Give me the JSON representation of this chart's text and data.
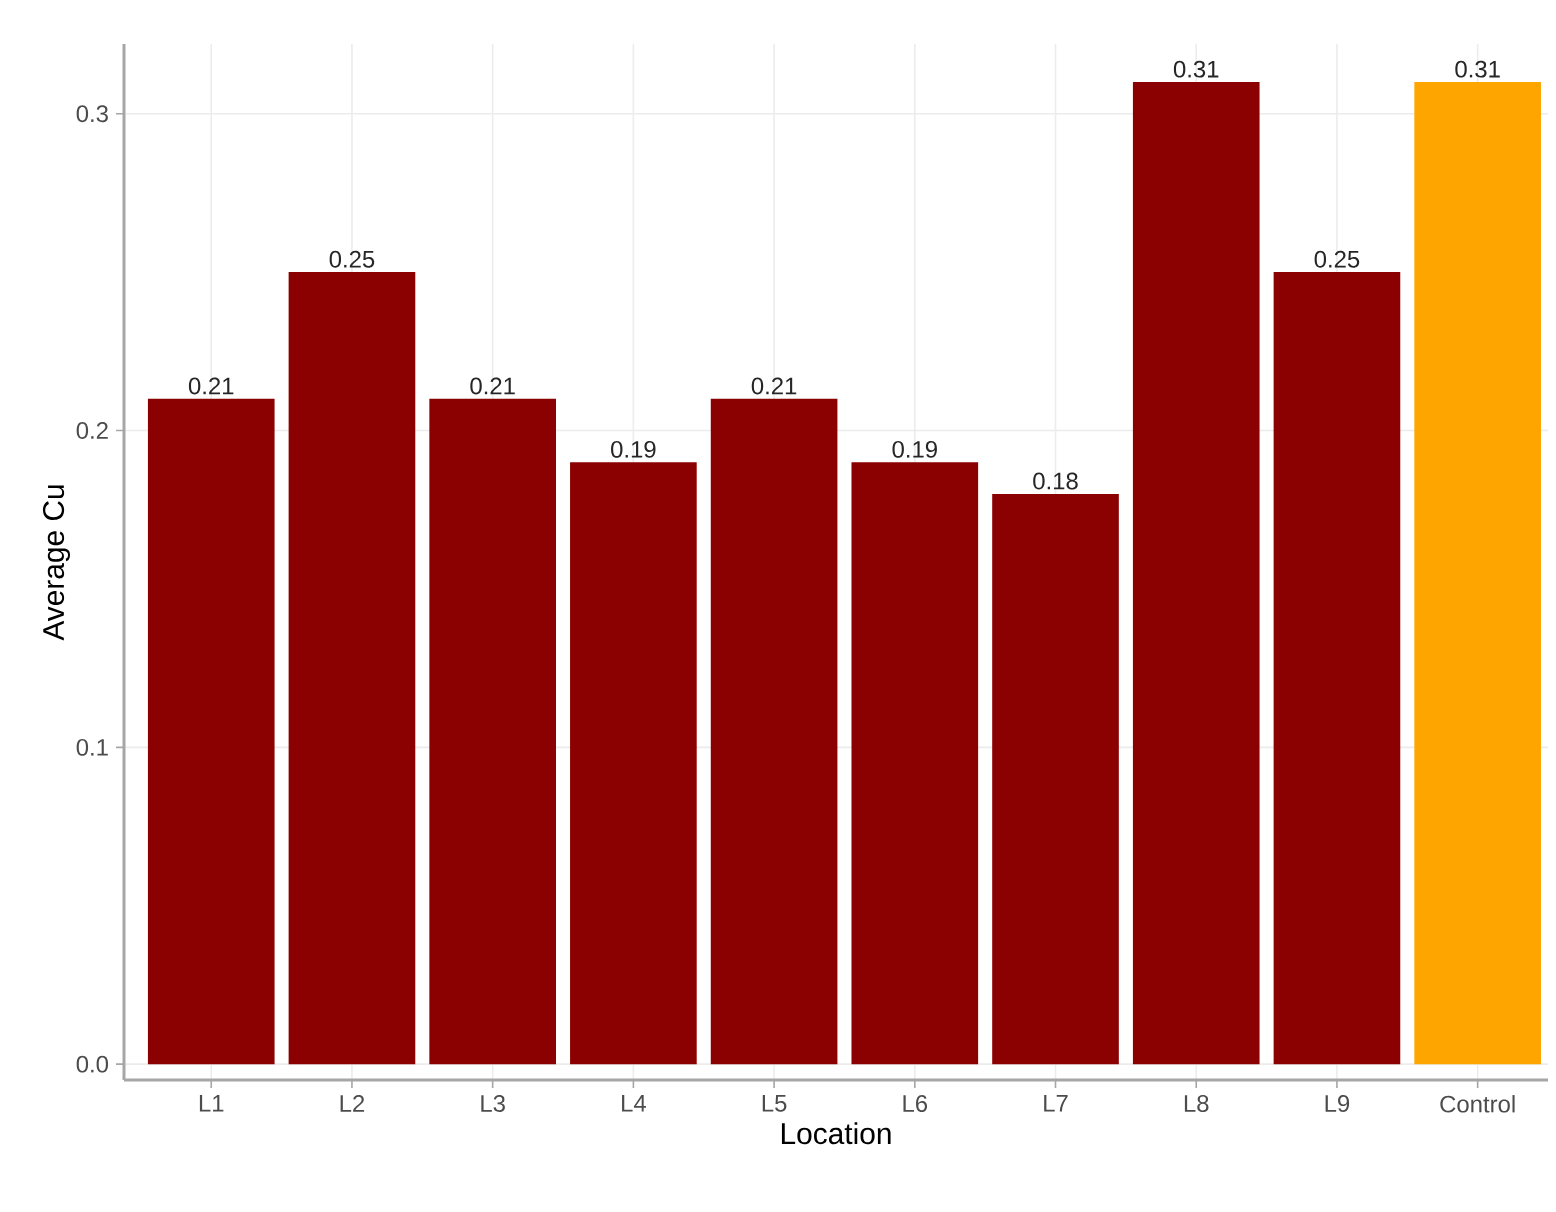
{
  "chart_data": {
    "type": "bar",
    "xlabel": "Location",
    "ylabel": "Average Cu",
    "categories": [
      "L1",
      "L2",
      "L3",
      "L4",
      "L5",
      "L6",
      "L7",
      "L8",
      "L9",
      "Control"
    ],
    "values": [
      0.21,
      0.25,
      0.21,
      0.19,
      0.21,
      0.19,
      0.18,
      0.31,
      0.25,
      0.31
    ],
    "colors": [
      "#8b0000",
      "#8b0000",
      "#8b0000",
      "#8b0000",
      "#8b0000",
      "#8b0000",
      "#8b0000",
      "#8b0000",
      "#8b0000",
      "#ffa500"
    ],
    "ylim": [
      -0.005,
      0.322
    ],
    "yticks": [
      {
        "value": 0,
        "label": "0.0"
      },
      {
        "value": 0.1,
        "label": "0.1"
      },
      {
        "value": 0.2,
        "label": "0.2"
      },
      {
        "value": 0.3,
        "label": "0.3"
      }
    ],
    "grid": true,
    "data_labels": true
  }
}
